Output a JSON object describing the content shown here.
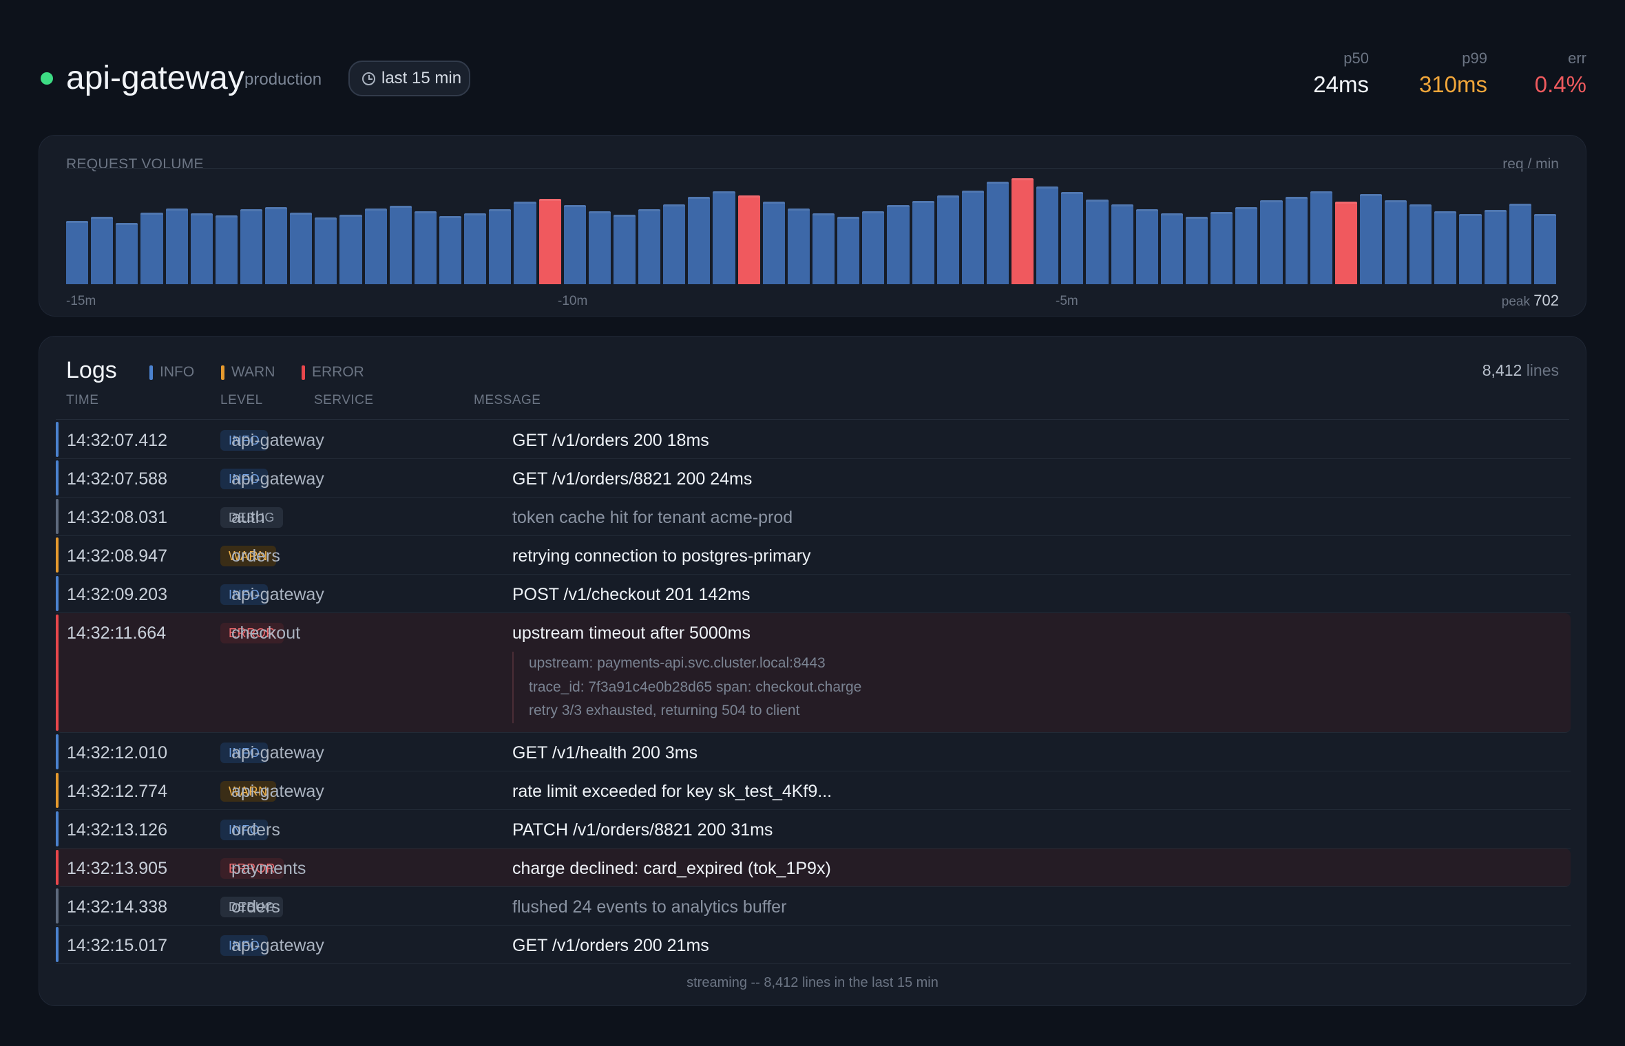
{
  "header": {
    "service_name": "api-gateway",
    "environment": "production",
    "time_range": "last 15 min",
    "status_color": "#3ddc84",
    "metrics": {
      "p50": {
        "label": "p50",
        "value": "24ms"
      },
      "p99": {
        "label": "p99",
        "value": "310ms",
        "color": "#f1a63a"
      },
      "err": {
        "label": "err",
        "value": "0.4%",
        "color": "#ef5a5e"
      }
    }
  },
  "volume": {
    "title": "REQUEST VOLUME",
    "unit": "req / min",
    "peak_label": "peak",
    "peak_value": "702",
    "axis_ticks": [
      "-15m",
      "-10m",
      "-5m"
    ]
  },
  "chart_data": {
    "type": "bar",
    "title": "REQUEST VOLUME",
    "ylabel": "req / min",
    "bar_color": "#3d68a8",
    "spike_color": "#f0595e",
    "values": [
      420,
      448,
      405,
      475,
      503,
      468,
      455,
      496,
      510,
      474,
      440,
      460,
      503,
      519,
      485,
      450,
      470,
      497,
      548,
      564,
      523,
      482,
      460,
      495,
      531,
      578,
      616,
      590,
      546,
      502,
      469,
      448,
      485,
      525,
      553,
      586,
      619,
      678,
      702,
      648,
      609,
      561,
      529,
      496,
      468,
      448,
      477,
      510,
      554,
      577,
      616,
      545,
      599,
      555,
      531,
      483,
      465,
      493,
      532,
      463
    ],
    "spikes": [
      19,
      27,
      38,
      51
    ]
  },
  "logs": {
    "title": "Logs",
    "legend": [
      {
        "label": "INFO",
        "color": "#4b82cf"
      },
      {
        "label": "WARN",
        "color": "#e69a2e"
      },
      {
        "label": "ERROR",
        "color": "#e8474c"
      }
    ],
    "lines_count": "8,412",
    "lines_label": "lines",
    "columns": {
      "time": "TIME",
      "level": "LEVEL",
      "service": "SERVICE",
      "message": "MESSAGE"
    },
    "rows": [
      {
        "time": "14:32:07.412",
        "level": "INFO",
        "service": "api-gateway",
        "message": "GET /v1/orders 200 18ms"
      },
      {
        "time": "14:32:07.588",
        "level": "INFO",
        "service": "api-gateway",
        "message": "GET /v1/orders/8821 200 24ms"
      },
      {
        "time": "14:32:08.031",
        "level": "DEBUG",
        "service": "auth",
        "message": "token cache hit for tenant acme-prod"
      },
      {
        "time": "14:32:08.947",
        "level": "WARN",
        "service": "orders",
        "message": "retrying connection to postgres-primary"
      },
      {
        "time": "14:32:09.203",
        "level": "INFO",
        "service": "api-gateway",
        "message": "POST /v1/checkout 201 142ms"
      },
      {
        "time": "14:32:11.664",
        "level": "ERROR",
        "service": "checkout",
        "message": "upstream timeout after 5000ms",
        "details": [
          "upstream: payments-api.svc.cluster.local:8443",
          "trace_id: 7f3a91c4e0b28d65  span: checkout.charge",
          "retry 3/3 exhausted, returning 504 to client"
        ]
      },
      {
        "time": "14:32:12.010",
        "level": "INFO",
        "service": "api-gateway",
        "message": "GET /v1/health 200 3ms"
      },
      {
        "time": "14:32:12.774",
        "level": "WARN",
        "service": "api-gateway",
        "message": "rate limit exceeded for key sk_test_4Kf9..."
      },
      {
        "time": "14:32:13.126",
        "level": "INFO",
        "service": "orders",
        "message": "PATCH /v1/orders/8821 200 31ms"
      },
      {
        "time": "14:32:13.905",
        "level": "ERROR",
        "service": "payments",
        "message": "charge declined: card_expired (tok_1P9x)"
      },
      {
        "time": "14:32:14.338",
        "level": "DEBUG",
        "service": "orders",
        "message": "flushed 24 events to analytics buffer"
      },
      {
        "time": "14:32:15.017",
        "level": "INFO",
        "service": "api-gateway",
        "message": "GET /v1/orders 200 21ms"
      }
    ],
    "footer": "streaming -- 8,412 lines in the last 15 min"
  }
}
